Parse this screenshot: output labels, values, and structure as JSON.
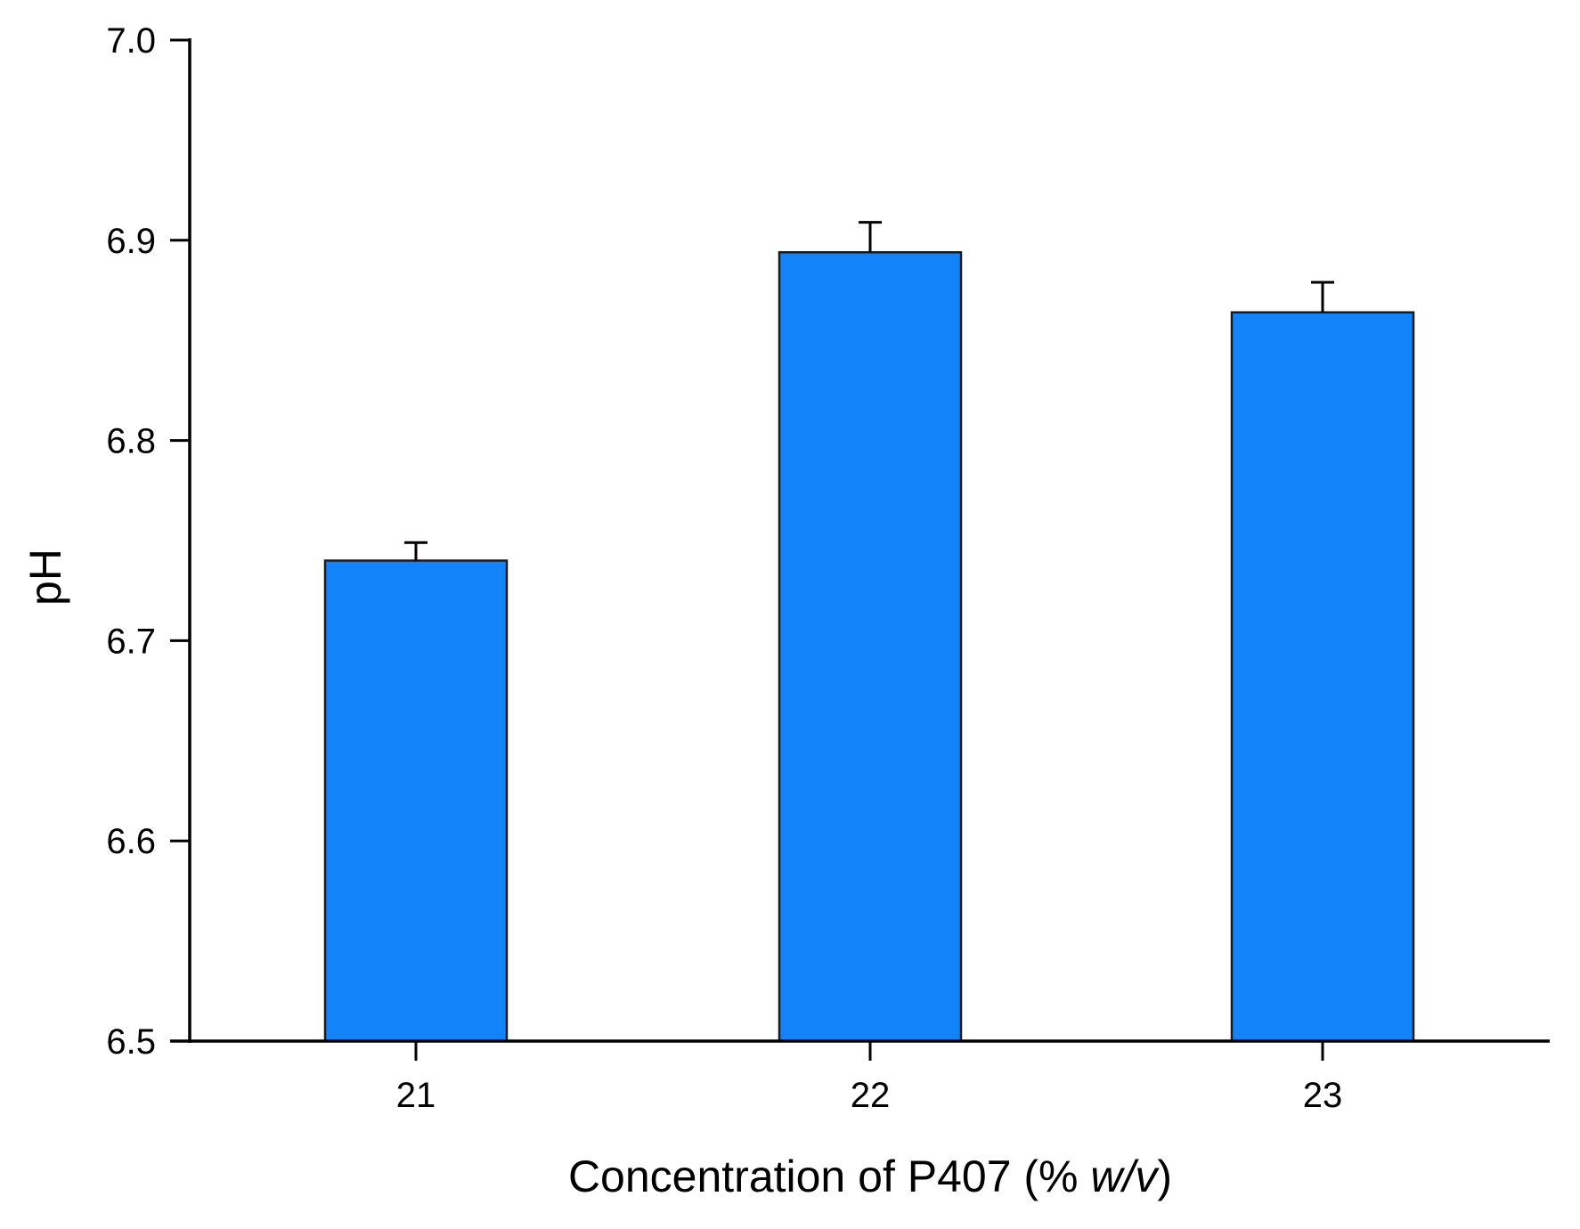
{
  "chart_data": {
    "type": "bar",
    "title": "",
    "xlabel": "Concentration of P407 (% w/v)",
    "xlabel_parts": {
      "prefix": "Concentration of P407 (% ",
      "italic": "w/v",
      "suffix": ")"
    },
    "ylabel": "pH",
    "categories": [
      "21",
      "22",
      "23"
    ],
    "values": [
      6.74,
      6.894,
      6.864
    ],
    "errors": [
      0.009,
      0.015,
      0.015
    ],
    "ylim": [
      6.5,
      7.0
    ],
    "yticks": [
      6.5,
      6.6,
      6.7,
      6.8,
      6.9,
      7.0
    ],
    "ytick_labels": [
      "6.5",
      "6.6",
      "6.7",
      "6.8",
      "6.9",
      "7.0"
    ],
    "grid": false,
    "legend": "none"
  },
  "colors": {
    "bar_fill": "#1283F9",
    "bar_stroke": "#1a1a1a",
    "axis": "#000000"
  }
}
